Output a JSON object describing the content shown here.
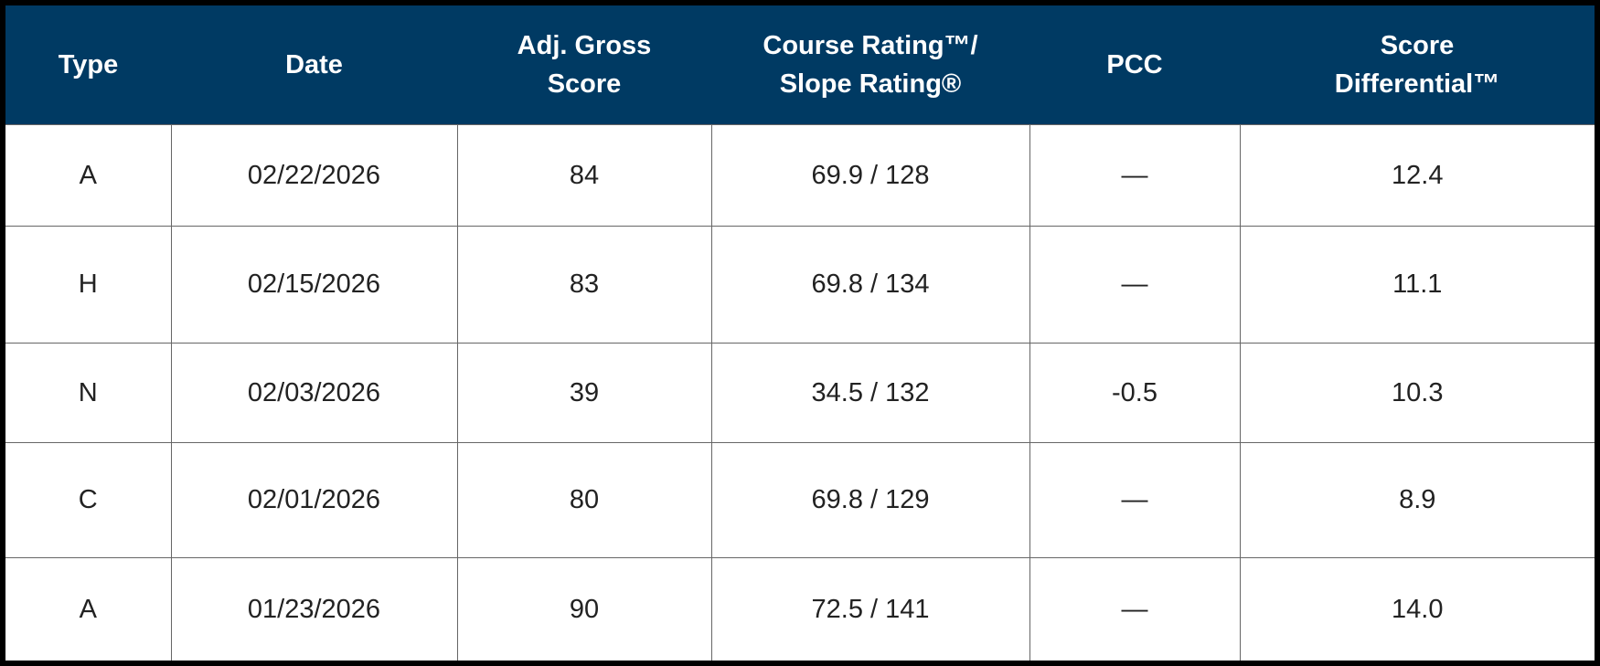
{
  "table": {
    "header": [
      "Type",
      "Date",
      "Adj. Gross\nScore",
      "Course Rating™/\nSlope Rating®",
      "PCC",
      "Score\nDifferential™"
    ],
    "rows": [
      [
        "A",
        "02/22/2026",
        "84",
        "69.9 / 128",
        "—",
        "12.4"
      ],
      [
        "H",
        "02/15/2026",
        "83",
        "69.8 / 134",
        "—",
        "11.1"
      ],
      [
        "N",
        "02/03/2026",
        "39",
        "34.5 / 132",
        "-0.5",
        "10.3"
      ],
      [
        "C",
        "02/01/2026",
        "80",
        "69.8 / 129",
        "—",
        "8.9"
      ],
      [
        "A",
        "01/23/2026",
        "90",
        "72.5 / 141",
        "—",
        "14.0"
      ]
    ]
  }
}
